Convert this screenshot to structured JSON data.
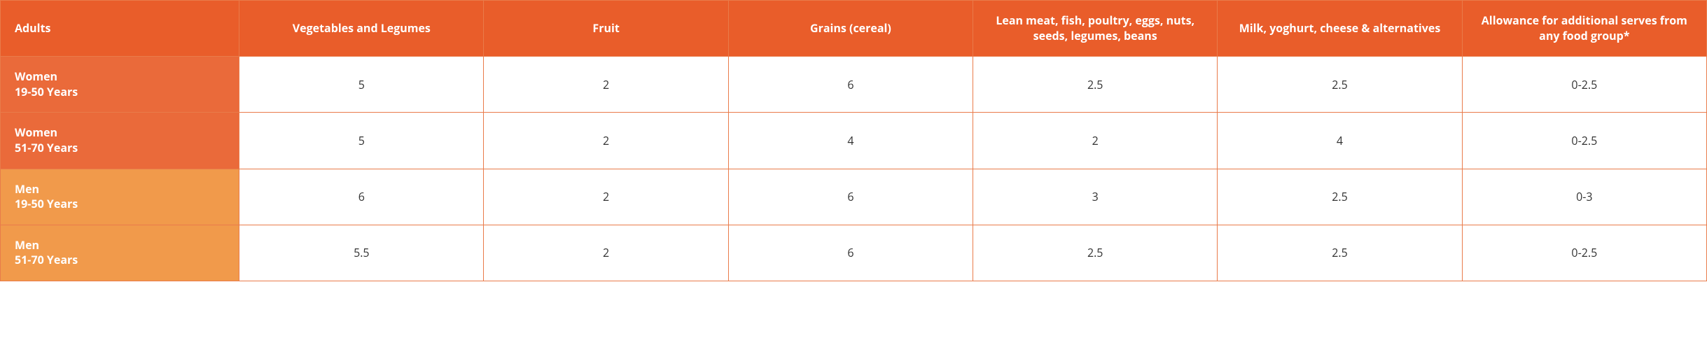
{
  "table": {
    "type": "table",
    "colors": {
      "header_bg": "#e95d2a",
      "header_text": "#ffffff",
      "row_head_women_bg": "#ea6a3a",
      "row_head_men_bg": "#f19a4b",
      "row_head_text": "#ffffff",
      "cell_bg": "#ffffff",
      "cell_text": "#333333",
      "border": "#e97b4a"
    },
    "font": {
      "header_size_pt": 12,
      "header_weight": 700,
      "cell_size_pt": 12,
      "cell_weight": 400,
      "family": "Open Sans"
    },
    "columns": [
      "Adults",
      "Vegetables and Legumes",
      "Fruit",
      "Grains (cereal)",
      "Lean meat, fish, poultry, eggs, nuts, seeds, legumes, beans",
      "Milk, yoghurt, cheese & alternatives",
      "Allowance for additional serves from any food group*"
    ],
    "rows": [
      {
        "label_line1": "Women",
        "label_line2": "19-50 Years",
        "head_bg": "#ea6a3a",
        "cells": [
          "5",
          "2",
          "6",
          "2.5",
          "2.5",
          "0-2.5"
        ]
      },
      {
        "label_line1": "Women",
        "label_line2": "51-70 Years",
        "head_bg": "#ea6a3a",
        "cells": [
          "5",
          "2",
          "4",
          "2",
          "4",
          "0-2.5"
        ]
      },
      {
        "label_line1": "Men",
        "label_line2": "19-50 Years",
        "head_bg": "#f19a4b",
        "cells": [
          "6",
          "2",
          "6",
          "3",
          "2.5",
          "0-3"
        ]
      },
      {
        "label_line1": "Men",
        "label_line2": "51-70 Years",
        "head_bg": "#f19a4b",
        "cells": [
          "5.5",
          "2",
          "6",
          "2.5",
          "2.5",
          "0-2.5"
        ]
      }
    ]
  }
}
